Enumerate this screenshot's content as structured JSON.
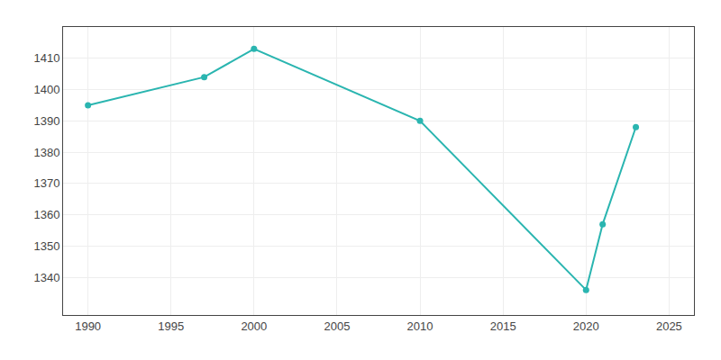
{
  "chart_data": {
    "type": "line",
    "x": [
      1990,
      1997,
      2000,
      2010,
      2020,
      2021,
      2023
    ],
    "values": [
      1395,
      1404,
      1413,
      1390,
      1336,
      1357,
      1388
    ],
    "color": "#2ab5b0",
    "marker": "circle",
    "xlim": [
      1988.5,
      2026.5
    ],
    "ylim": [
      1328,
      1420
    ],
    "xticks": [
      1990,
      1995,
      2000,
      2005,
      2010,
      2015,
      2020,
      2025
    ],
    "yticks": [
      1340,
      1350,
      1360,
      1370,
      1380,
      1390,
      1400,
      1410
    ],
    "grid": true
  }
}
